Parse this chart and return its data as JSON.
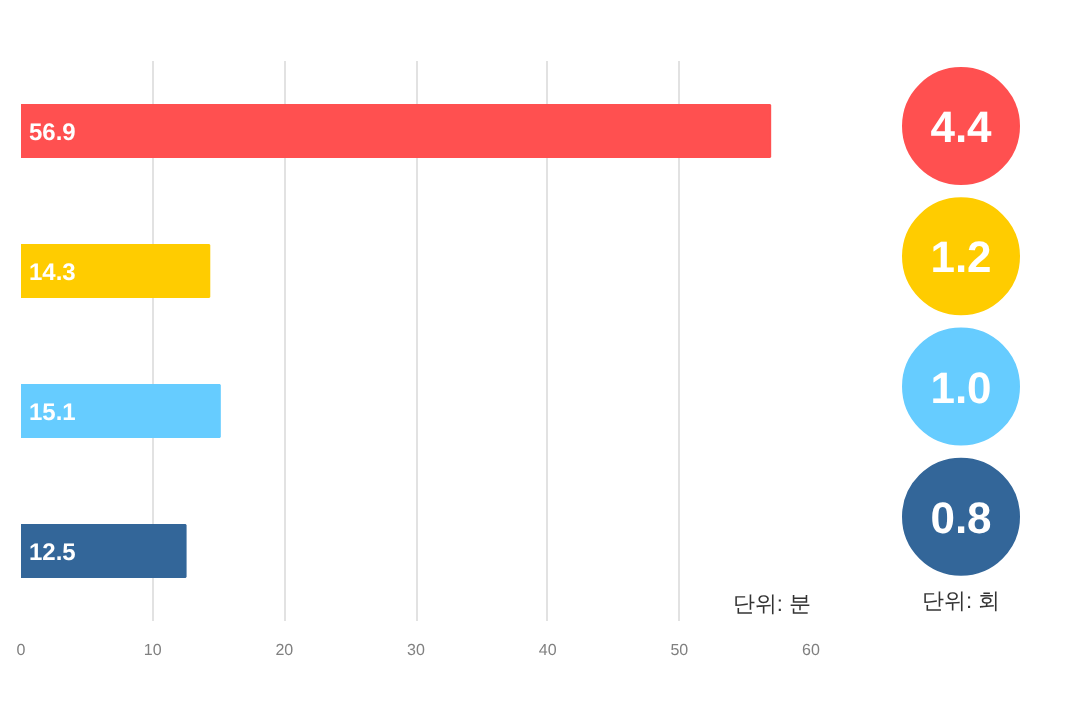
{
  "chart_data": [
    {
      "type": "bar",
      "orientation": "horizontal",
      "categories": [
        null,
        null,
        null,
        null
      ],
      "values": [
        56.9,
        14.3,
        15.1,
        12.5
      ],
      "colors": [
        "#ff5050",
        "#ffcc00",
        "#66ccff",
        "#336699"
      ],
      "data_labels": true,
      "xlim": [
        0,
        60
      ],
      "xticks": [
        0,
        10,
        20,
        30,
        40,
        50,
        60
      ],
      "grid": "x",
      "tick_labels": "x",
      "annotations": [
        "단위: 분"
      ]
    },
    {
      "type": "other",
      "categories": [
        null,
        null,
        null,
        null
      ],
      "values": [
        4.4,
        1.2,
        1.0,
        0.8
      ],
      "colors": [
        "#ff5050",
        "#ffcc00",
        "#66ccff",
        "#336699"
      ],
      "value_labels": [
        "4.4",
        "1.2",
        "1.0",
        "0.8"
      ],
      "annotations": [
        "단위: 회"
      ]
    }
  ]
}
